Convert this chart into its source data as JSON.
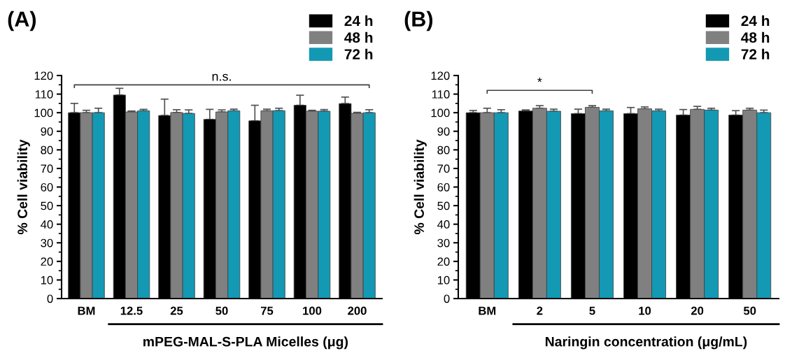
{
  "chart_data": [
    {
      "type": "bar",
      "title": "(A)",
      "xlabel": "mPEG-MAL-S-PLA Micelles (μg)",
      "ylabel": "% Cell viability",
      "categories": [
        "BM",
        "12.5",
        "25",
        "50",
        "75",
        "100",
        "200"
      ],
      "series": [
        {
          "name": "24 h",
          "color": "#000000",
          "values": [
            100,
            109.5,
            98.5,
            96.4,
            95.6,
            104,
            104.9
          ],
          "errors": [
            [
              100,
              105
            ],
            [
              109.5,
              113.1
            ],
            [
              98.5,
              107.3
            ],
            [
              96.4,
              101.8
            ],
            [
              95.6,
              104
            ],
            [
              104,
              109.4
            ],
            [
              104.9,
              108.4
            ]
          ]
        },
        {
          "name": "48 h",
          "color": "#808080",
          "values": [
            100,
            100.4,
            100.1,
            100.4,
            101,
            100.8,
            99.7
          ],
          "errors": [
            [
              100,
              101.3
            ],
            [
              100.4,
              100.9
            ],
            [
              100.1,
              101.6
            ],
            [
              100.4,
              101.5
            ],
            [
              101,
              101.9
            ],
            [
              100.8,
              101.3
            ],
            [
              99.7,
              100.2
            ]
          ]
        },
        {
          "name": "72 h",
          "color": "#1399b4",
          "values": [
            100,
            101,
            99.6,
            101,
            101.1,
            100.8,
            100
          ],
          "errors": [
            [
              100,
              102.4
            ],
            [
              101,
              101.8
            ],
            [
              99.6,
              101.5
            ],
            [
              101,
              101.9
            ],
            [
              101.1,
              102.4
            ],
            [
              100.8,
              101.7
            ],
            [
              100,
              101.6
            ]
          ]
        }
      ],
      "ylim": [
        0,
        120
      ],
      "yticks": [
        0,
        10,
        20,
        30,
        40,
        50,
        60,
        70,
        80,
        90,
        100,
        110,
        120
      ],
      "annotations": [
        "n.s."
      ],
      "legend": "top right",
      "grid": false
    },
    {
      "type": "bar",
      "title": "(B)",
      "xlabel": "Naringin concentration (μg/mL)",
      "ylabel": "% Cell viability",
      "categories": [
        "BM",
        "2",
        "5",
        "10",
        "20",
        "50"
      ],
      "series": [
        {
          "name": "24 h",
          "color": "#000000",
          "values": [
            100,
            100.9,
            99.5,
            99.5,
            98.7,
            98.7
          ],
          "errors": [
            [
              100,
              101.2
            ],
            [
              100.9,
              101.5
            ],
            [
              99.5,
              101.9
            ],
            [
              99.5,
              102.8
            ],
            [
              98.7,
              101.7
            ],
            [
              98.7,
              101.1
            ]
          ]
        },
        {
          "name": "48 h",
          "color": "#808080",
          "values": [
            100,
            102.4,
            102.9,
            102.1,
            101.8,
            101.4
          ],
          "errors": [
            [
              100,
              102.4
            ],
            [
              102.4,
              103.8
            ],
            [
              102.9,
              103.8
            ],
            [
              102.1,
              103.1
            ],
            [
              101.8,
              103.4
            ],
            [
              101.4,
              102.4
            ]
          ]
        },
        {
          "name": "72 h",
          "color": "#1399b4",
          "values": [
            100,
            100.8,
            101,
            101,
            101.4,
            100
          ],
          "errors": [
            [
              100,
              101.6
            ],
            [
              100.8,
              101.9
            ],
            [
              101,
              101.9
            ],
            [
              101,
              101.9
            ],
            [
              101.4,
              102.4
            ],
            [
              100,
              101.4
            ]
          ]
        }
      ],
      "ylim": [
        0,
        120
      ],
      "yticks": [
        0,
        10,
        20,
        30,
        40,
        50,
        60,
        70,
        80,
        90,
        100,
        110,
        120
      ],
      "annotations": [
        "*"
      ],
      "legend": "top right",
      "grid": false
    }
  ]
}
